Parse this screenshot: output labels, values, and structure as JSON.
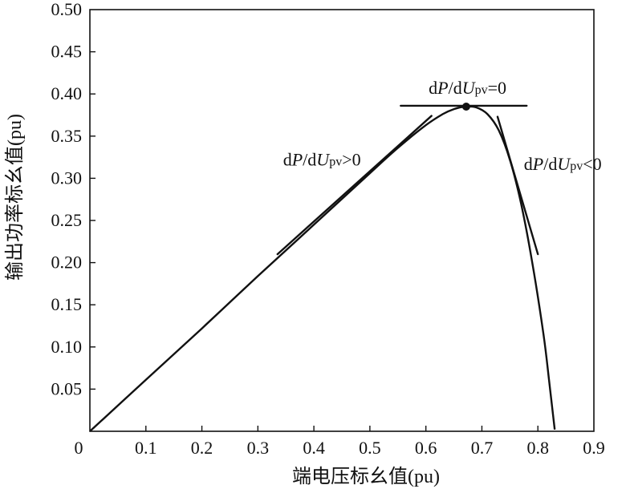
{
  "chart_data": {
    "type": "line",
    "title": "",
    "xlabel": "端电压标幺值(pu)",
    "ylabel": "输出功率标幺值(pu)",
    "xlim": [
      0,
      0.9
    ],
    "ylim": [
      0,
      0.5
    ],
    "grid": false,
    "x_ticks": [
      {
        "value": 0,
        "label": "0"
      },
      {
        "value": 0.1,
        "label": "0.1"
      },
      {
        "value": 0.2,
        "label": "0.2"
      },
      {
        "value": 0.3,
        "label": "0.3"
      },
      {
        "value": 0.4,
        "label": "0.4"
      },
      {
        "value": 0.5,
        "label": "0.5"
      },
      {
        "value": 0.6,
        "label": "0.6"
      },
      {
        "value": 0.7,
        "label": "0.7"
      },
      {
        "value": 0.8,
        "label": "0.8"
      },
      {
        "value": 0.9,
        "label": "0.9"
      }
    ],
    "y_ticks": [
      {
        "value": 0.05,
        "label": "0.05"
      },
      {
        "value": 0.1,
        "label": "0.10"
      },
      {
        "value": 0.15,
        "label": "0.15"
      },
      {
        "value": 0.2,
        "label": "0.20"
      },
      {
        "value": 0.25,
        "label": "0.25"
      },
      {
        "value": 0.3,
        "label": "0.30"
      },
      {
        "value": 0.35,
        "label": "0.35"
      },
      {
        "value": 0.4,
        "label": "0.40"
      },
      {
        "value": 0.45,
        "label": "0.45"
      },
      {
        "value": 0.5,
        "label": "0.50"
      }
    ],
    "series": [
      {
        "x": [
          0,
          0.1,
          0.2,
          0.3,
          0.4,
          0.5,
          0.55,
          0.6,
          0.63,
          0.65,
          0.67,
          0.69,
          0.71,
          0.73,
          0.75,
          0.77,
          0.79,
          0.81,
          0.82,
          0.83
        ],
        "y": [
          0,
          0.061,
          0.122,
          0.184,
          0.245,
          0.306,
          0.336,
          0.363,
          0.376,
          0.382,
          0.385,
          0.384,
          0.376,
          0.357,
          0.322,
          0.27,
          0.2,
          0.115,
          0.06,
          0.002
        ]
      }
    ],
    "max_power_point": {
      "x": 0.672,
      "y": 0.385
    },
    "tangent_lines": [
      {
        "x": [
          0.335,
          0.61
        ],
        "y": [
          0.21,
          0.374
        ]
      },
      {
        "x": [
          0.555,
          0.78
        ],
        "y": [
          0.386,
          0.386
        ]
      },
      {
        "x": [
          0.728,
          0.8
        ],
        "y": [
          0.373,
          0.21
        ]
      }
    ],
    "annotations": [
      {
        "id": "zero",
        "x": 0.605,
        "y": 0.4,
        "parts": [
          "d",
          "P",
          "/d",
          "U",
          "pv",
          "=0"
        ]
      },
      {
        "id": "pos",
        "x": 0.345,
        "y": 0.315,
        "parts": [
          "d",
          "P",
          "/d",
          "U",
          "pv",
          ">0"
        ]
      },
      {
        "id": "neg",
        "x": 0.775,
        "y": 0.31,
        "parts": [
          "d",
          "P",
          "/d",
          "U",
          "pv",
          "<0"
        ]
      }
    ]
  }
}
